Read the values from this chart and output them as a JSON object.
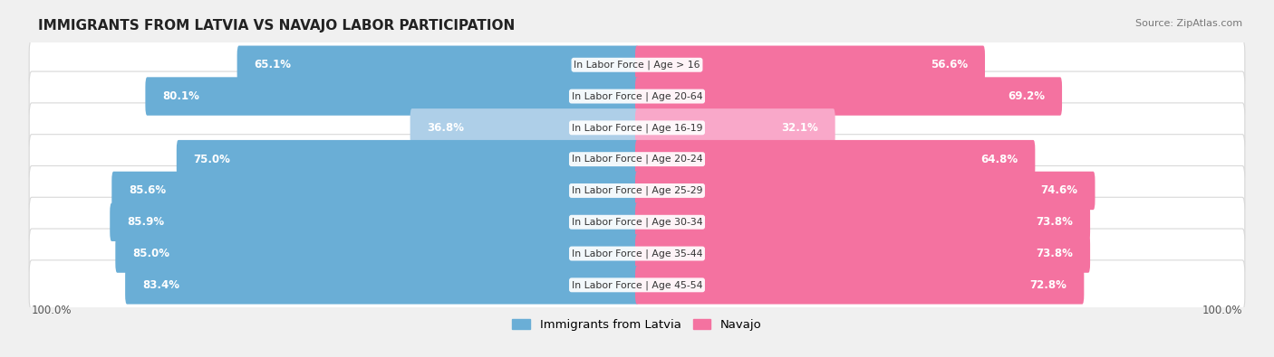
{
  "title": "IMMIGRANTS FROM LATVIA VS NAVAJO LABOR PARTICIPATION",
  "source": "Source: ZipAtlas.com",
  "categories": [
    "In Labor Force | Age > 16",
    "In Labor Force | Age 20-64",
    "In Labor Force | Age 16-19",
    "In Labor Force | Age 20-24",
    "In Labor Force | Age 25-29",
    "In Labor Force | Age 30-34",
    "In Labor Force | Age 35-44",
    "In Labor Force | Age 45-54"
  ],
  "latvia_values": [
    65.1,
    80.1,
    36.8,
    75.0,
    85.6,
    85.9,
    85.0,
    83.4
  ],
  "navajo_values": [
    56.6,
    69.2,
    32.1,
    64.8,
    74.6,
    73.8,
    73.8,
    72.8
  ],
  "latvia_color": "#6aaed6",
  "latvia_light_color": "#aecfe8",
  "navajo_color": "#f472a0",
  "navajo_light_color": "#f9a8c9",
  "background_color": "#f0f0f0",
  "legend_latvia": "Immigrants from Latvia",
  "legend_navajo": "Navajo",
  "left_label": "100.0%",
  "right_label": "100.0%"
}
